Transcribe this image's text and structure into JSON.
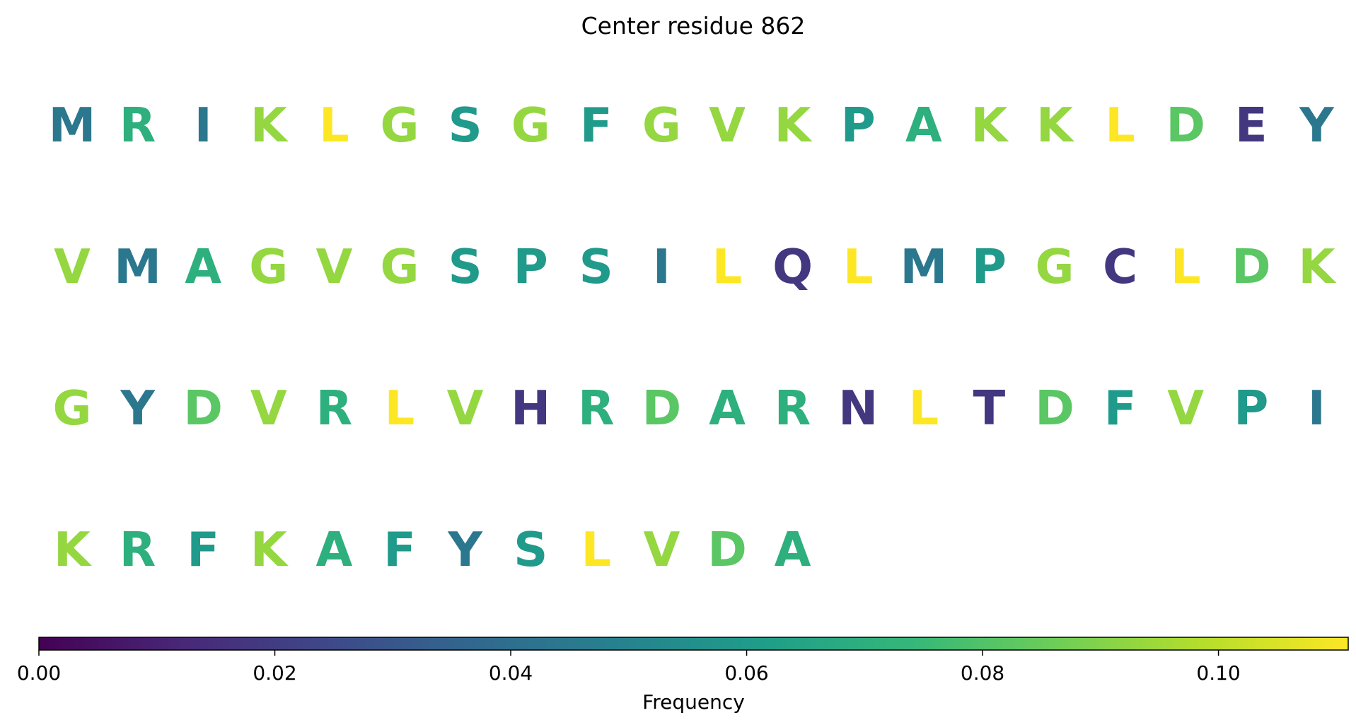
{
  "chart_data": {
    "type": "heatmap",
    "title": "Center residue 862",
    "rows": [
      {
        "residues": [
          "M",
          "R",
          "I",
          "K",
          "L",
          "G",
          "S",
          "G",
          "F",
          "G",
          "V",
          "K",
          "P",
          "A",
          "K",
          "K",
          "L",
          "D",
          "E",
          "Y"
        ]
      },
      {
        "residues": [
          "V",
          "M",
          "A",
          "G",
          "V",
          "G",
          "S",
          "P",
          "S",
          "I",
          "L",
          "Q",
          "L",
          "M",
          "P",
          "G",
          "C",
          "L",
          "D",
          "K"
        ]
      },
      {
        "residues": [
          "G",
          "Y",
          "D",
          "V",
          "R",
          "L",
          "V",
          "H",
          "R",
          "D",
          "A",
          "R",
          "N",
          "L",
          "T",
          "D",
          "F",
          "V",
          "P",
          "I"
        ]
      },
      {
        "residues": [
          "K",
          "R",
          "F",
          "K",
          "A",
          "F",
          "Y",
          "S",
          "L",
          "V",
          "D",
          "A"
        ]
      }
    ],
    "frequency": {
      "A": 0.07,
      "C": 0.018,
      "D": 0.082,
      "E": 0.018,
      "F": 0.06,
      "G": 0.093,
      "H": 0.018,
      "I": 0.044,
      "K": 0.093,
      "L": 0.111,
      "M": 0.044,
      "N": 0.018,
      "P": 0.06,
      "Q": 0.018,
      "R": 0.07,
      "S": 0.06,
      "T": 0.018,
      "V": 0.093,
      "Y": 0.044
    },
    "colorbar": {
      "label": "Frequency",
      "range": [
        0,
        0.111
      ],
      "ticks": [
        0.0,
        0.02,
        0.04,
        0.06,
        0.08,
        0.1
      ],
      "tick_labels": [
        "0.00",
        "0.02",
        "0.04",
        "0.06",
        "0.08",
        "0.10"
      ],
      "colormap": "viridis",
      "colormap_stops": [
        "#440154",
        "#482878",
        "#3e4989",
        "#31688e",
        "#26828e",
        "#1f9e89",
        "#35b779",
        "#6ece58",
        "#b5de2b",
        "#fde725"
      ]
    }
  }
}
